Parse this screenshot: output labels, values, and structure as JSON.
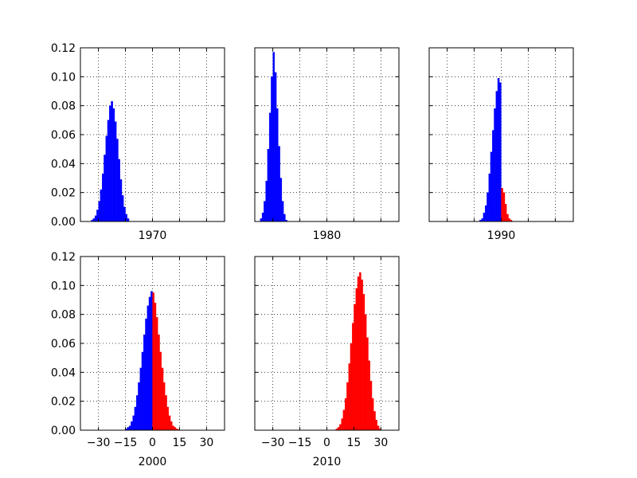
{
  "chart_data": [
    {
      "type": "bar",
      "title": "",
      "xlabel": "1970",
      "ylabel": "",
      "xlim": [
        -40,
        40
      ],
      "ylim": [
        0,
        0.12
      ],
      "grid": true,
      "xticks": [],
      "yticks": [
        0.0,
        0.02,
        0.04,
        0.06,
        0.08,
        0.1,
        0.12
      ],
      "ytick_labels": [
        "0.00",
        "0.02",
        "0.04",
        "0.06",
        "0.08",
        "0.10",
        "0.12"
      ],
      "bin_width": 1,
      "series": [
        {
          "color": "#0000ff",
          "bins": [
            -34,
            -33,
            -32,
            -31,
            -30,
            -29,
            -28,
            -27,
            -26,
            -25,
            -24,
            -23,
            -22,
            -21,
            -20,
            -19,
            -18,
            -17,
            -16,
            -15,
            -14
          ],
          "values": [
            0.001,
            0.002,
            0.004,
            0.008,
            0.014,
            0.022,
            0.033,
            0.046,
            0.059,
            0.07,
            0.08,
            0.083,
            0.078,
            0.069,
            0.057,
            0.043,
            0.029,
            0.018,
            0.01,
            0.005,
            0.002
          ]
        }
      ]
    },
    {
      "type": "bar",
      "title": "",
      "xlabel": "1980",
      "ylabel": "",
      "xlim": [
        -40,
        40
      ],
      "ylim": [
        0,
        0.12
      ],
      "grid": true,
      "xticks": [],
      "yticks": [],
      "ytick_labels": [],
      "bin_width": 1,
      "series": [
        {
          "color": "#0000ff",
          "bins": [
            -37,
            -36,
            -35,
            -34,
            -33,
            -32,
            -31,
            -30,
            -29,
            -28,
            -27,
            -26,
            -25,
            -24,
            -23
          ],
          "values": [
            0.002,
            0.006,
            0.014,
            0.028,
            0.05,
            0.075,
            0.1,
            0.117,
            0.103,
            0.078,
            0.052,
            0.03,
            0.014,
            0.005,
            0.001
          ]
        }
      ]
    },
    {
      "type": "bar",
      "title": "",
      "xlabel": "1990",
      "ylabel": "",
      "xlim": [
        -40,
        40
      ],
      "ylim": [
        0,
        0.12
      ],
      "grid": true,
      "xticks": [],
      "yticks": [],
      "ytick_labels": [],
      "bin_width": 1,
      "series": [
        {
          "color": "#0000ff",
          "bins": [
            -12,
            -11,
            -10,
            -9,
            -8,
            -7,
            -6,
            -5,
            -4,
            -3,
            -2,
            -1
          ],
          "values": [
            0.001,
            0.002,
            0.006,
            0.011,
            0.02,
            0.033,
            0.048,
            0.063,
            0.078,
            0.09,
            0.099,
            0.096
          ]
        },
        {
          "color": "#ff0000",
          "bins": [
            0,
            1,
            2,
            3,
            4,
            5
          ],
          "values": [
            0.023,
            0.02,
            0.012,
            0.005,
            0.002,
            0.001
          ]
        }
      ]
    },
    {
      "type": "bar",
      "title": "",
      "xlabel": "2000",
      "ylabel": "",
      "xlim": [
        -40,
        40
      ],
      "ylim": [
        0,
        0.12
      ],
      "grid": true,
      "xticks": [
        -30,
        -15,
        0,
        15,
        30
      ],
      "xtick_labels": [
        "−30",
        "−15",
        "0",
        "15",
        "30"
      ],
      "yticks": [
        0.0,
        0.02,
        0.04,
        0.06,
        0.08,
        0.1,
        0.12
      ],
      "ytick_labels": [
        "0.00",
        "0.02",
        "0.04",
        "0.06",
        "0.08",
        "0.10",
        "0.12"
      ],
      "bin_width": 1,
      "series": [
        {
          "color": "#0000ff",
          "bins": [
            -15,
            -14,
            -13,
            -12,
            -11,
            -10,
            -9,
            -8,
            -7,
            -6,
            -5,
            -4,
            -3,
            -2,
            -1
          ],
          "values": [
            0.001,
            0.002,
            0.003,
            0.006,
            0.01,
            0.016,
            0.024,
            0.033,
            0.043,
            0.054,
            0.066,
            0.077,
            0.086,
            0.092,
            0.096
          ]
        },
        {
          "color": "#ff0000",
          "bins": [
            0,
            1,
            2,
            3,
            4,
            5,
            6,
            7,
            8,
            9,
            10,
            11,
            12,
            13,
            14
          ],
          "values": [
            0.095,
            0.088,
            0.078,
            0.066,
            0.054,
            0.043,
            0.033,
            0.024,
            0.016,
            0.01,
            0.006,
            0.003,
            0.002,
            0.001,
            0.0005
          ]
        }
      ]
    },
    {
      "type": "bar",
      "title": "",
      "xlabel": "2010",
      "ylabel": "",
      "xlim": [
        -40,
        40
      ],
      "ylim": [
        0,
        0.12
      ],
      "grid": true,
      "xticks": [
        -30,
        -15,
        0,
        15,
        30
      ],
      "xtick_labels": [
        "−30",
        "−15",
        "0",
        "15",
        "30"
      ],
      "yticks": [],
      "ytick_labels": [],
      "bin_width": 1,
      "series": [
        {
          "color": "#ff0000",
          "bins": [
            5,
            6,
            7,
            8,
            9,
            10,
            11,
            12,
            13,
            14,
            15,
            16,
            17,
            18,
            19,
            20,
            21,
            22,
            23,
            24,
            25,
            26,
            27,
            28,
            29
          ],
          "values": [
            0.001,
            0.002,
            0.004,
            0.008,
            0.014,
            0.022,
            0.033,
            0.046,
            0.06,
            0.074,
            0.087,
            0.098,
            0.106,
            0.109,
            0.104,
            0.094,
            0.08,
            0.064,
            0.048,
            0.034,
            0.022,
            0.013,
            0.007,
            0.003,
            0.001
          ]
        }
      ]
    }
  ]
}
